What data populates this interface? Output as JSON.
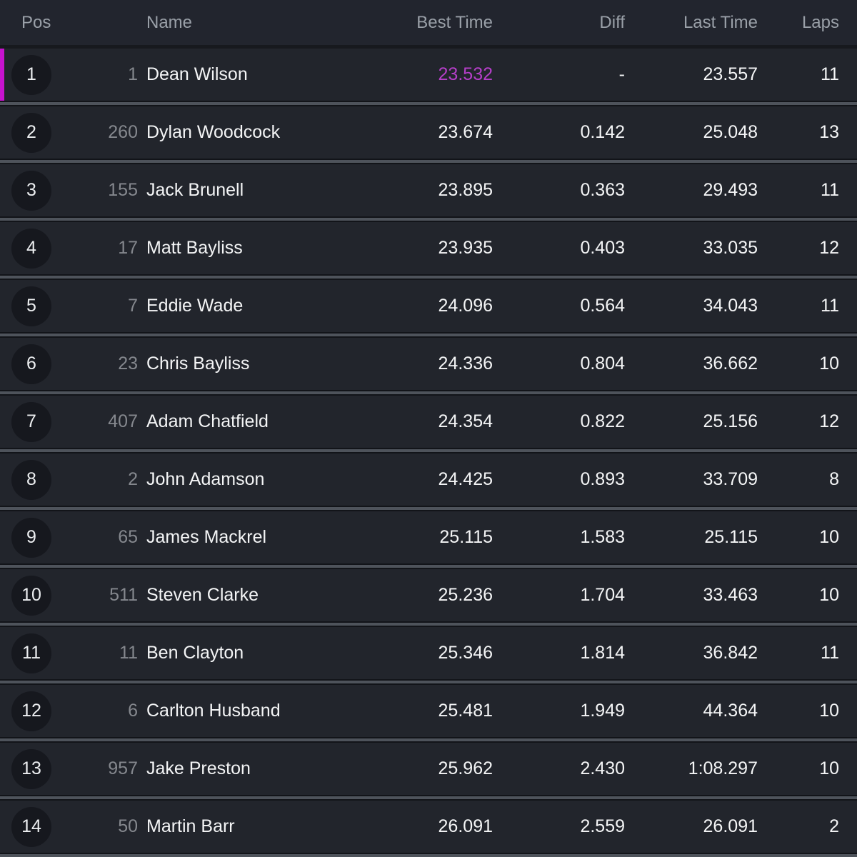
{
  "colors": {
    "accent": "#c713ce",
    "leader_best_time": "#b53fc9"
  },
  "table": {
    "columns": {
      "pos": "Pos",
      "name": "Name",
      "best": "Best Time",
      "diff": "Diff",
      "last": "Last Time",
      "laps": "Laps"
    },
    "rows": [
      {
        "pos": "1",
        "num": "1",
        "name": "Dean Wilson",
        "best": "23.532",
        "diff": "-",
        "last": "23.557",
        "laps": "11",
        "leader": true
      },
      {
        "pos": "2",
        "num": "260",
        "name": "Dylan Woodcock",
        "best": "23.674",
        "diff": "0.142",
        "last": "25.048",
        "laps": "13"
      },
      {
        "pos": "3",
        "num": "155",
        "name": "Jack Brunell",
        "best": "23.895",
        "diff": "0.363",
        "last": "29.493",
        "laps": "11"
      },
      {
        "pos": "4",
        "num": "17",
        "name": "Matt Bayliss",
        "best": "23.935",
        "diff": "0.403",
        "last": "33.035",
        "laps": "12"
      },
      {
        "pos": "5",
        "num": "7",
        "name": "Eddie Wade",
        "best": "24.096",
        "diff": "0.564",
        "last": "34.043",
        "laps": "11"
      },
      {
        "pos": "6",
        "num": "23",
        "name": "Chris Bayliss",
        "best": "24.336",
        "diff": "0.804",
        "last": "36.662",
        "laps": "10"
      },
      {
        "pos": "7",
        "num": "407",
        "name": "Adam Chatfield",
        "best": "24.354",
        "diff": "0.822",
        "last": "25.156",
        "laps": "12"
      },
      {
        "pos": "8",
        "num": "2",
        "name": "John Adamson",
        "best": "24.425",
        "diff": "0.893",
        "last": "33.709",
        "laps": "8"
      },
      {
        "pos": "9",
        "num": "65",
        "name": "James Mackrel",
        "best": "25.115",
        "diff": "1.583",
        "last": "25.115",
        "laps": "10"
      },
      {
        "pos": "10",
        "num": "511",
        "name": "Steven Clarke",
        "best": "25.236",
        "diff": "1.704",
        "last": "33.463",
        "laps": "10"
      },
      {
        "pos": "11",
        "num": "11",
        "name": "Ben Clayton",
        "best": "25.346",
        "diff": "1.814",
        "last": "36.842",
        "laps": "11"
      },
      {
        "pos": "12",
        "num": "6",
        "name": "Carlton Husband",
        "best": "25.481",
        "diff": "1.949",
        "last": "44.364",
        "laps": "10"
      },
      {
        "pos": "13",
        "num": "957",
        "name": "Jake Preston",
        "best": "25.962",
        "diff": "2.430",
        "last": "1:08.297",
        "laps": "10"
      },
      {
        "pos": "14",
        "num": "50",
        "name": "Martin Barr",
        "best": "26.091",
        "diff": "2.559",
        "last": "26.091",
        "laps": "2"
      }
    ]
  }
}
